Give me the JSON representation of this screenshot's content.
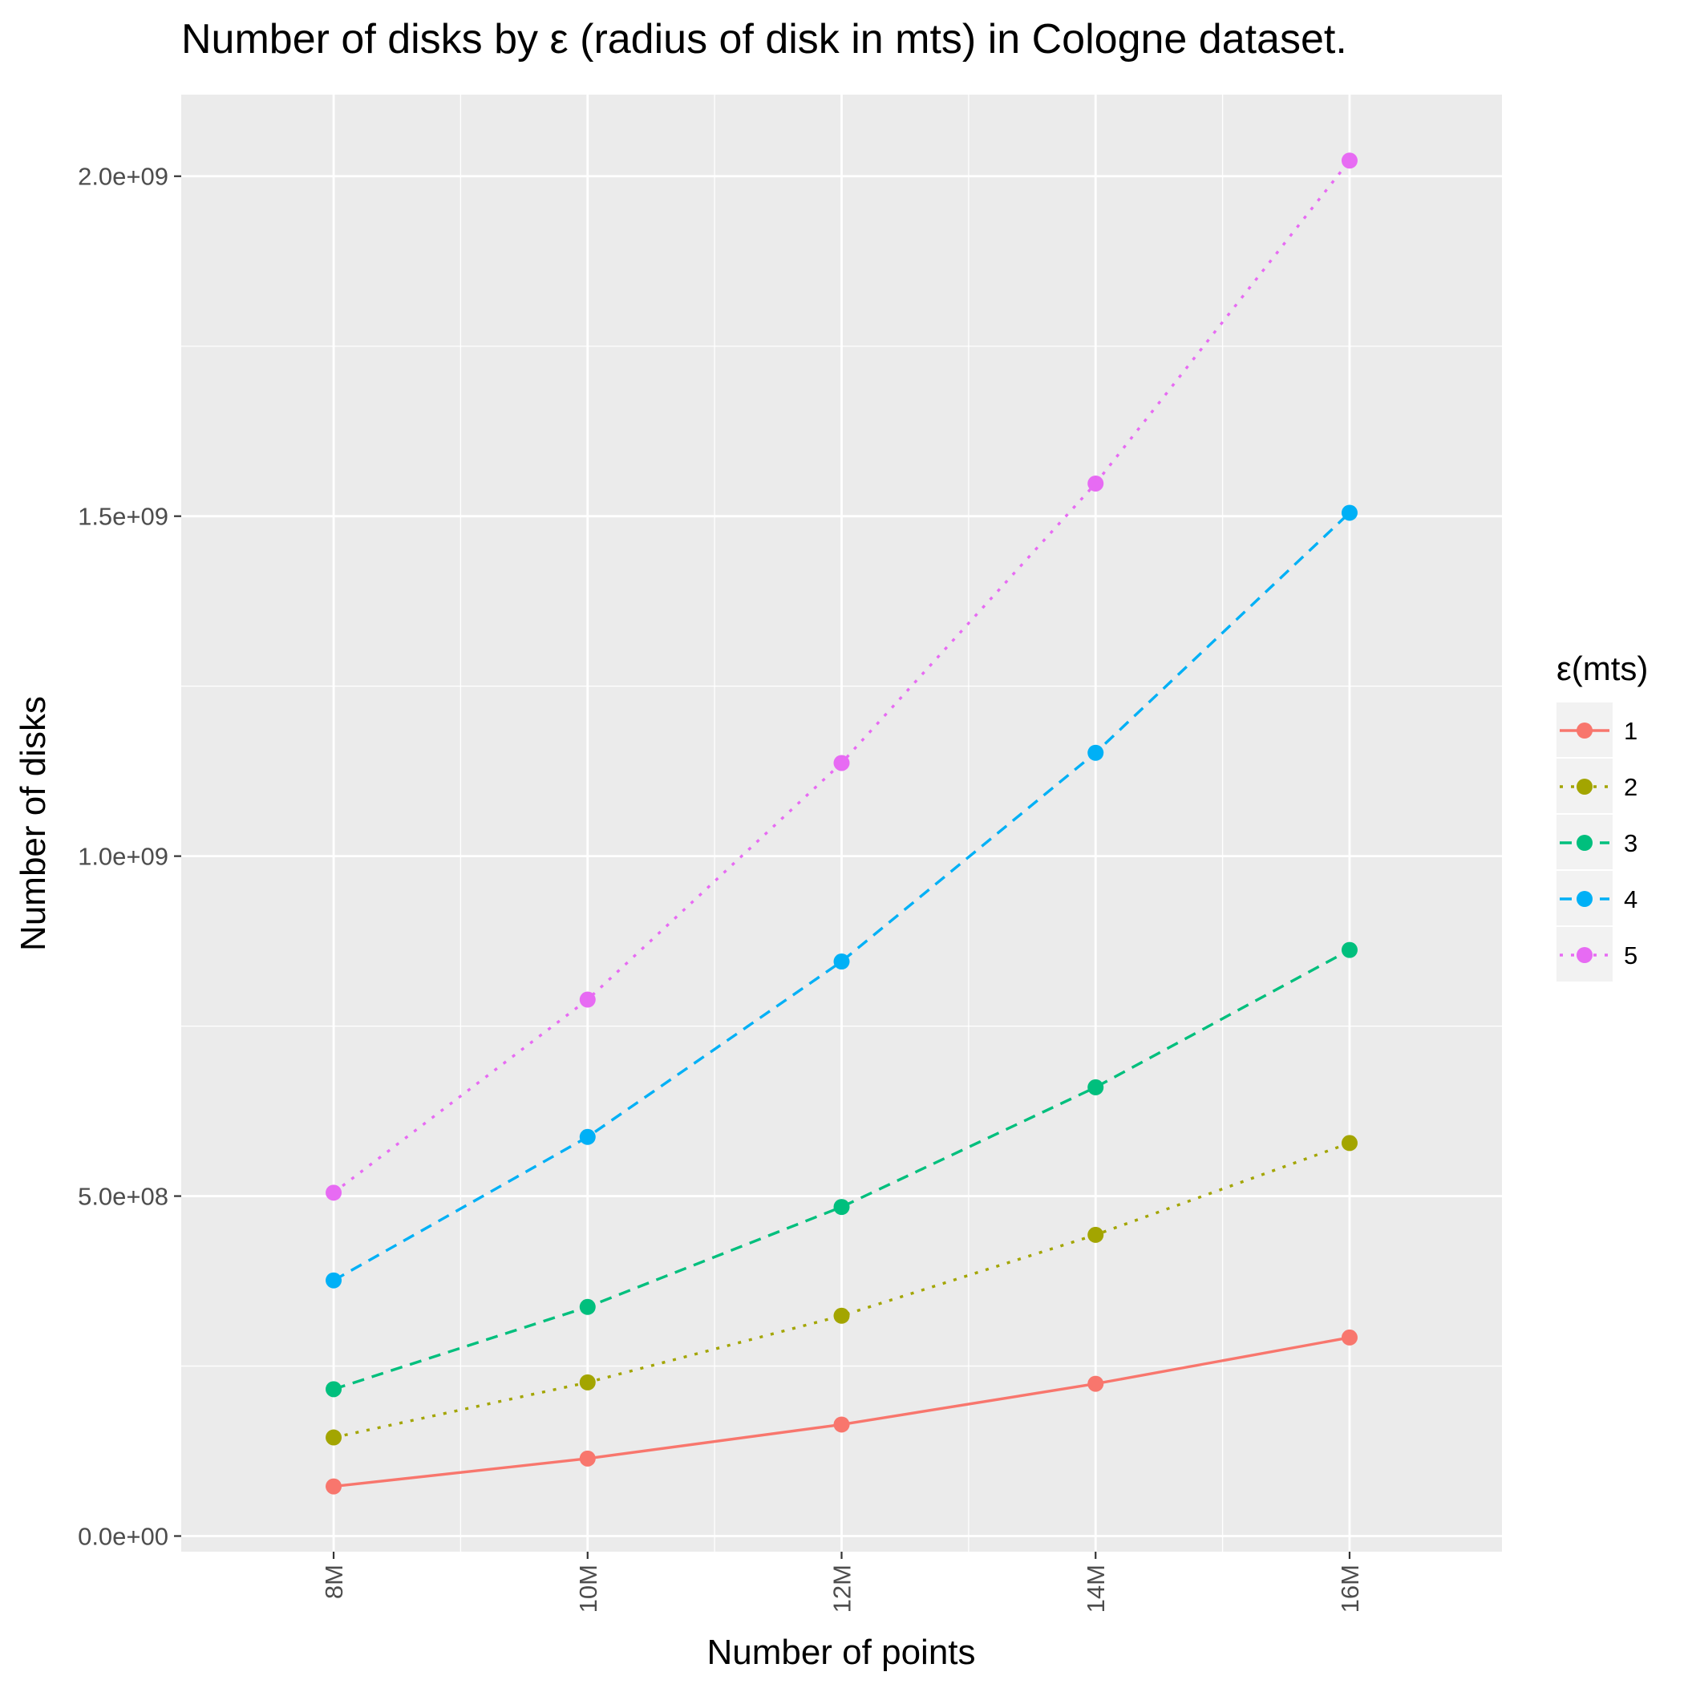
{
  "chart_data": {
    "type": "line",
    "title": "Number of disks by ε (radius of disk in mts) in Cologne dataset.",
    "xlabel": "Number of points",
    "ylabel": "Number of disks",
    "x": [
      8,
      10,
      12,
      14,
      16
    ],
    "x_tick_labels": [
      "8M",
      "10M",
      "12M",
      "14M",
      "16M"
    ],
    "xlim": [
      6.8,
      17.2
    ],
    "ylim": [
      -23000000.0,
      2120000000.0
    ],
    "y_ticks": [
      0,
      500000000,
      1000000000,
      1500000000,
      2000000000
    ],
    "y_tick_labels": [
      "0.0e+00",
      "5.0e+08",
      "1.0e+09",
      "1.5e+09",
      "2.0e+09"
    ],
    "grid": true,
    "legend": {
      "title": "ε(mts)",
      "position": "right"
    },
    "series": [
      {
        "name": "1",
        "color": "#F8766D",
        "dash": "solid",
        "values": [
          73000000,
          114000000,
          164000000,
          224000000,
          292000000
        ]
      },
      {
        "name": "2",
        "color": "#A3A500",
        "dash": "dotted",
        "values": [
          145000000,
          226000000,
          324000000,
          443000000,
          578000000
        ]
      },
      {
        "name": "3",
        "color": "#00BF7D",
        "dash": "dashed",
        "values": [
          216000000,
          337000000,
          484000000,
          660000000,
          862000000
        ]
      },
      {
        "name": "4",
        "color": "#00B0F6",
        "dash": "dashed",
        "values": [
          376000000,
          587000000,
          845000000,
          1152000000,
          1505000000
        ]
      },
      {
        "name": "5",
        "color": "#E76BF3",
        "dash": "dotted",
        "values": [
          505000000,
          789000000,
          1137000000,
          1548000000,
          2023000000
        ]
      }
    ]
  }
}
